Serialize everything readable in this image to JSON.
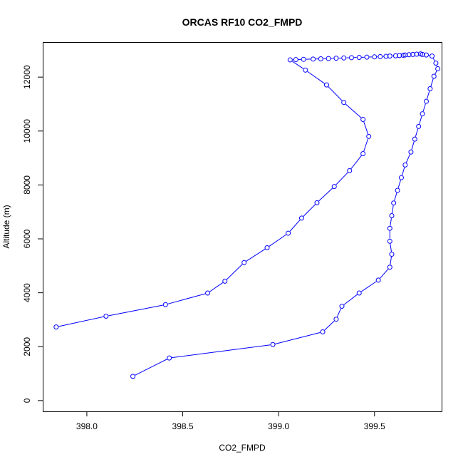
{
  "chart_data": {
    "type": "scatter",
    "title": "ORCAS RF10 CO2_FMPD",
    "xlabel": "CO2_FMPD",
    "ylabel": "Altitude (m)",
    "xlim": [
      397.77,
      399.85
    ],
    "ylim": [
      -400,
      13300
    ],
    "xticks": [
      398.0,
      398.5,
      399.0,
      399.5
    ],
    "xtick_labels": [
      "398.0",
      "398.5",
      "399.0",
      "399.5"
    ],
    "yticks": [
      0,
      2000,
      4000,
      6000,
      8000,
      10000,
      12000
    ],
    "ytick_labels": [
      "0",
      "2000",
      "4000",
      "6000",
      "8000",
      "10000",
      "12000"
    ],
    "grid": false,
    "series": [
      {
        "color": "#0000ff",
        "marker": "open-circle",
        "line": true,
        "x": [
          398.24,
          398.43,
          398.97,
          399.23,
          399.3,
          399.33,
          399.42,
          399.52,
          399.58,
          399.59,
          399.58,
          399.58,
          399.59,
          399.6,
          399.62,
          399.64,
          399.66,
          399.69,
          399.71,
          399.73,
          399.75,
          399.77,
          399.79,
          399.81,
          399.83,
          399.82,
          399.8,
          399.77,
          399.75,
          399.74,
          399.72,
          399.7,
          399.68,
          399.66,
          399.65,
          399.63,
          399.61,
          399.58,
          399.56,
          399.53,
          399.5,
          399.46,
          399.42,
          399.38,
          399.34,
          399.3,
          399.26,
          399.22,
          399.18,
          399.13,
          399.09,
          399.06,
          399.14,
          399.25,
          399.34,
          399.44,
          399.47,
          399.44,
          399.37,
          399.29,
          399.2,
          399.12,
          399.05,
          398.94,
          398.82,
          398.72,
          398.63,
          398.41,
          398.1,
          397.84
        ],
        "y": [
          900,
          1580,
          2080,
          2550,
          3020,
          3500,
          3990,
          4470,
          4950,
          5430,
          5910,
          6390,
          6860,
          7330,
          7800,
          8270,
          8740,
          9220,
          9700,
          10170,
          10640,
          11100,
          11570,
          12030,
          12310,
          12520,
          12780,
          12820,
          12840,
          12860,
          12850,
          12840,
          12830,
          12820,
          12810,
          12800,
          12790,
          12780,
          12770,
          12760,
          12750,
          12740,
          12730,
          12720,
          12710,
          12700,
          12690,
          12680,
          12670,
          12660,
          12650,
          12640,
          12260,
          11710,
          11060,
          10430,
          9800,
          9160,
          8530,
          7940,
          7340,
          6770,
          6210,
          5670,
          5120,
          4430,
          3990,
          3560,
          3130,
          2730
        ]
      }
    ]
  }
}
